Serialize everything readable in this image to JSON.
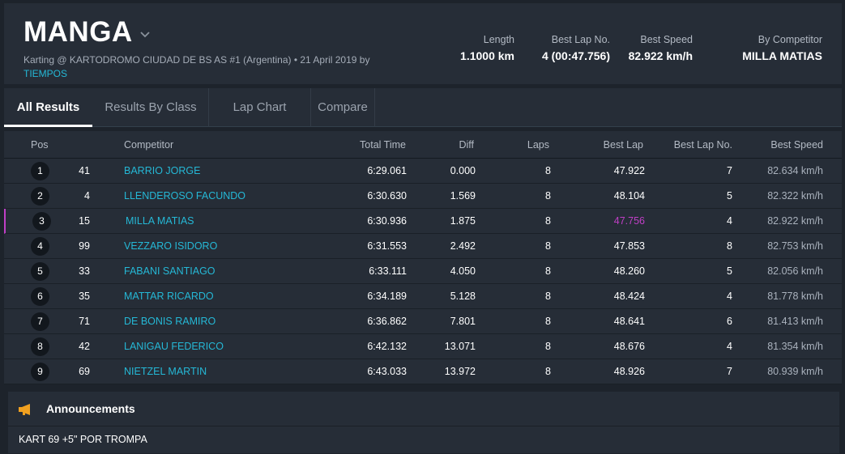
{
  "header": {
    "title": "MANGA",
    "subtitle": "Karting @ KARTODROMO CIUDAD DE BS AS #1 (Argentina) • 21 April 2019 by",
    "subtitle_link": "TIEMPOS",
    "stats": [
      {
        "label": "Length",
        "value": "1.1000 km"
      },
      {
        "label": "Best Lap No.",
        "value": "4 (00:47.756)"
      },
      {
        "label": "Best Speed",
        "value": "82.922 km/h"
      },
      {
        "label": "By Competitor",
        "value": "MILLA MATIAS"
      }
    ]
  },
  "tabs": [
    {
      "label": "All Results",
      "active": true
    },
    {
      "label": "Results By Class",
      "active": false
    },
    {
      "label": "Lap Chart",
      "active": false
    },
    {
      "label": "Compare",
      "active": false
    }
  ],
  "table": {
    "columns": {
      "pos": "Pos",
      "competitor": "Competitor",
      "total_time": "Total Time",
      "diff": "Diff",
      "laps": "Laps",
      "best_lap": "Best Lap",
      "best_lap_no": "Best Lap No.",
      "best_speed": "Best Speed"
    },
    "rows": [
      {
        "pos": "1",
        "number": "41",
        "competitor": "BARRIO JORGE",
        "total_time": "6:29.061",
        "diff": "0.000",
        "laps": "8",
        "best_lap": "47.922",
        "best_lap_no": "7",
        "best_speed": "82.634 km/h"
      },
      {
        "pos": "2",
        "number": "4",
        "competitor": "LLENDEROSO FACUNDO",
        "total_time": "6:30.630",
        "diff": "1.569",
        "laps": "8",
        "best_lap": "48.104",
        "best_lap_no": "5",
        "best_speed": "82.322 km/h"
      },
      {
        "pos": "3",
        "number": "15",
        "competitor": "MILLA MATIAS",
        "total_time": "6:30.936",
        "diff": "1.875",
        "laps": "8",
        "best_lap": "47.756",
        "best_lap_no": "4",
        "best_speed": "82.922 km/h"
      },
      {
        "pos": "4",
        "number": "99",
        "competitor": "VEZZARO ISIDORO",
        "total_time": "6:31.553",
        "diff": "2.492",
        "laps": "8",
        "best_lap": "47.853",
        "best_lap_no": "8",
        "best_speed": "82.753 km/h"
      },
      {
        "pos": "5",
        "number": "33",
        "competitor": "FABANI SANTIAGO",
        "total_time": "6:33.111",
        "diff": "4.050",
        "laps": "8",
        "best_lap": "48.260",
        "best_lap_no": "5",
        "best_speed": "82.056 km/h"
      },
      {
        "pos": "6",
        "number": "35",
        "competitor": "MATTAR RICARDO",
        "total_time": "6:34.189",
        "diff": "5.128",
        "laps": "8",
        "best_lap": "48.424",
        "best_lap_no": "4",
        "best_speed": "81.778 km/h"
      },
      {
        "pos": "7",
        "number": "71",
        "competitor": "DE BONIS RAMIRO",
        "total_time": "6:36.862",
        "diff": "7.801",
        "laps": "8",
        "best_lap": "48.641",
        "best_lap_no": "6",
        "best_speed": "81.413 km/h"
      },
      {
        "pos": "8",
        "number": "42",
        "competitor": "LANIGAU FEDERICO",
        "total_time": "6:42.132",
        "diff": "13.071",
        "laps": "8",
        "best_lap": "48.676",
        "best_lap_no": "4",
        "best_speed": "81.354 km/h"
      },
      {
        "pos": "9",
        "number": "69",
        "competitor": "NIETZEL MARTIN",
        "total_time": "6:43.033",
        "diff": "13.972",
        "laps": "8",
        "best_lap": "48.926",
        "best_lap_no": "7",
        "best_speed": "80.939 km/h"
      }
    ]
  },
  "announcements": {
    "title": "Announcements",
    "icon": "megaphone-icon",
    "text": "KART 69 +5\" POR TROMPA"
  },
  "colors": {
    "accent_link": "#25b8d6",
    "best_lap_highlight": "#c03fc6",
    "megaphone": "#f0a020"
  }
}
